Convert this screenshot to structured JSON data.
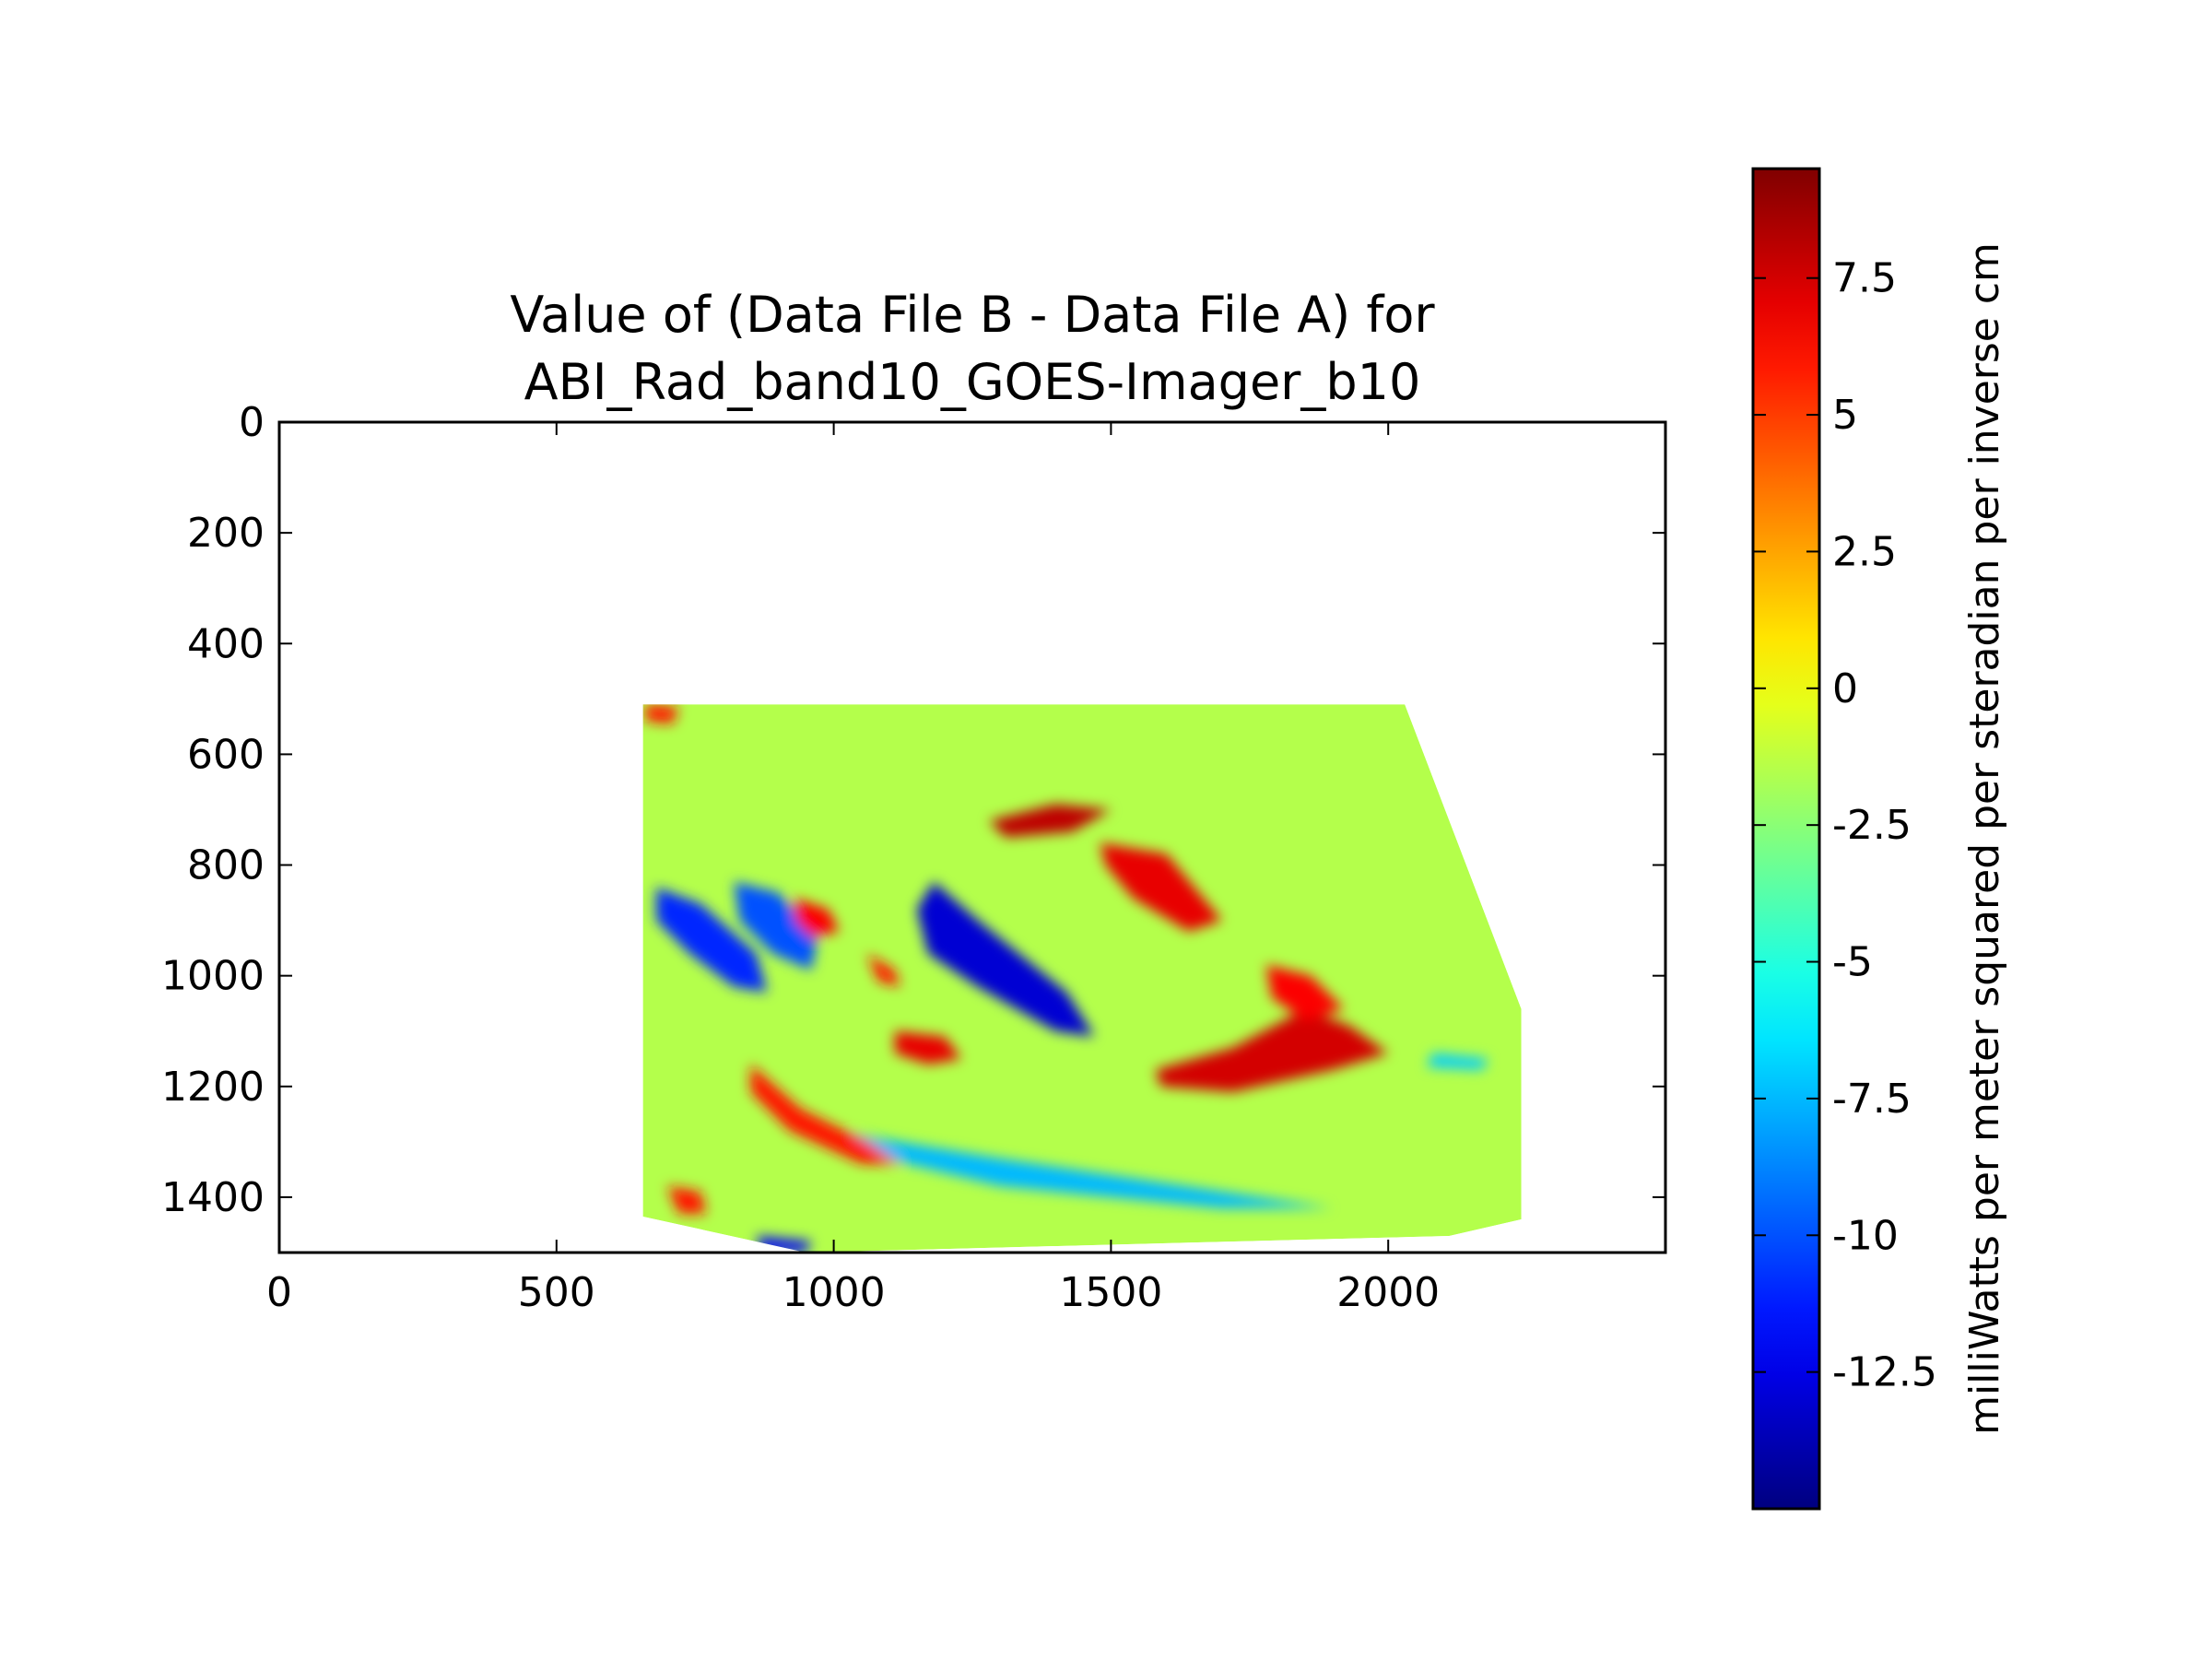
{
  "chart_data": {
    "type": "heatmap",
    "title": "Value of (Data File B - Data File A) for\nABI_Rad_band10_GOES-Imager_b10",
    "title_lines": [
      "Value of (Data File B - Data File A) for",
      "ABI_Rad_band10_GOES-Imager_b10"
    ],
    "xlabel": "",
    "ylabel": "",
    "xlim": [
      0,
      2500
    ],
    "ylim": [
      1500,
      0
    ],
    "y_inverted": true,
    "x_ticks": [
      0,
      500,
      1000,
      1500,
      2000
    ],
    "x_tick_labels": [
      "0",
      "500",
      "1000",
      "1500",
      "2000"
    ],
    "y_ticks": [
      0,
      200,
      400,
      600,
      800,
      1000,
      1200,
      1400
    ],
    "y_tick_labels": [
      "0",
      "200",
      "400",
      "600",
      "800",
      "1000",
      "1200",
      "1400"
    ],
    "grid": false,
    "data_region_outline": [
      [
        656,
        510
      ],
      [
        2030,
        510
      ],
      [
        2240,
        1060
      ],
      [
        2240,
        1440
      ],
      [
        2110,
        1470
      ],
      [
        950,
        1500
      ],
      [
        656,
        1435
      ]
    ],
    "background_value": -1.5,
    "features": [
      {
        "kind": "negative",
        "value": -13,
        "points": [
          [
            1180,
            830
          ],
          [
            1260,
            900
          ],
          [
            1420,
            1030
          ],
          [
            1470,
            1110
          ],
          [
            1400,
            1100
          ],
          [
            1260,
            1020
          ],
          [
            1170,
            960
          ],
          [
            1150,
            880
          ]
        ]
      },
      {
        "kind": "negative",
        "value": -11,
        "points": [
          [
            680,
            840
          ],
          [
            760,
            870
          ],
          [
            860,
            960
          ],
          [
            880,
            1030
          ],
          [
            820,
            1020
          ],
          [
            740,
            960
          ],
          [
            680,
            900
          ]
        ]
      },
      {
        "kind": "negative",
        "value": -10,
        "points": [
          [
            820,
            830
          ],
          [
            900,
            850
          ],
          [
            970,
            930
          ],
          [
            960,
            990
          ],
          [
            890,
            960
          ],
          [
            830,
            900
          ]
        ]
      },
      {
        "kind": "negative",
        "value": -7.5,
        "points": [
          [
            1000,
            1280
          ],
          [
            1300,
            1330
          ],
          [
            1700,
            1390
          ],
          [
            1900,
            1420
          ],
          [
            1700,
            1420
          ],
          [
            1300,
            1380
          ],
          [
            1050,
            1320
          ]
        ]
      },
      {
        "kind": "negative",
        "value": -12,
        "points": [
          [
            860,
            1470
          ],
          [
            960,
            1480
          ],
          [
            950,
            1500
          ],
          [
            870,
            1500
          ]
        ]
      },
      {
        "kind": "negative",
        "value": -7,
        "points": [
          [
            2080,
            1140
          ],
          [
            2180,
            1150
          ],
          [
            2170,
            1170
          ],
          [
            2070,
            1165
          ]
        ]
      },
      {
        "kind": "positive",
        "value": 8,
        "points": [
          [
            1280,
            720
          ],
          [
            1400,
            690
          ],
          [
            1500,
            700
          ],
          [
            1430,
            740
          ],
          [
            1310,
            750
          ]
        ]
      },
      {
        "kind": "positive",
        "value": 7,
        "points": [
          [
            1480,
            760
          ],
          [
            1600,
            780
          ],
          [
            1650,
            840
          ],
          [
            1700,
            900
          ],
          [
            1640,
            920
          ],
          [
            1540,
            860
          ],
          [
            1490,
            800
          ]
        ]
      },
      {
        "kind": "positive",
        "value": 7.5,
        "points": [
          [
            1580,
            1170
          ],
          [
            1720,
            1130
          ],
          [
            1850,
            1060
          ],
          [
            1930,
            1090
          ],
          [
            2000,
            1140
          ],
          [
            1900,
            1170
          ],
          [
            1720,
            1210
          ],
          [
            1590,
            1200
          ]
        ]
      },
      {
        "kind": "positive",
        "value": 6.5,
        "points": [
          [
            1780,
            980
          ],
          [
            1860,
            1000
          ],
          [
            1920,
            1060
          ],
          [
            1850,
            1080
          ],
          [
            1790,
            1040
          ]
        ]
      },
      {
        "kind": "positive",
        "value": 6,
        "points": [
          [
            850,
            1160
          ],
          [
            940,
            1240
          ],
          [
            1060,
            1300
          ],
          [
            1120,
            1340
          ],
          [
            1050,
            1340
          ],
          [
            920,
            1280
          ],
          [
            850,
            1210
          ]
        ]
      },
      {
        "kind": "positive",
        "value": 7,
        "points": [
          [
            1110,
            1100
          ],
          [
            1200,
            1110
          ],
          [
            1230,
            1150
          ],
          [
            1170,
            1160
          ],
          [
            1110,
            1140
          ]
        ]
      },
      {
        "kind": "positive",
        "value": 6.5,
        "points": [
          [
            930,
            860
          ],
          [
            990,
            880
          ],
          [
            1010,
            920
          ],
          [
            960,
            930
          ],
          [
            930,
            900
          ]
        ]
      },
      {
        "kind": "positive",
        "value": 6,
        "points": [
          [
            1060,
            960
          ],
          [
            1110,
            990
          ],
          [
            1120,
            1020
          ],
          [
            1080,
            1010
          ]
        ]
      },
      {
        "kind": "positive",
        "value": 6,
        "points": [
          [
            660,
            510
          ],
          [
            720,
            515
          ],
          [
            710,
            545
          ],
          [
            660,
            540
          ]
        ]
      },
      {
        "kind": "positive",
        "value": 6,
        "points": [
          [
            700,
            1380
          ],
          [
            760,
            1390
          ],
          [
            770,
            1430
          ],
          [
            720,
            1430
          ]
        ]
      }
    ],
    "colorbar": {
      "colormap": "jet",
      "vmin": -15,
      "vmax": 9.5,
      "ticks": [
        7.5,
        5,
        2.5,
        0,
        -2.5,
        -5,
        -7.5,
        -10,
        -12.5
      ],
      "tick_labels": [
        "7.5",
        "5",
        "2.5",
        "0",
        "-2.5",
        "-5",
        "-7.5",
        "-10",
        "-12.5"
      ],
      "label": "milliWatts per meter squared per steradian per inverse cm"
    }
  }
}
